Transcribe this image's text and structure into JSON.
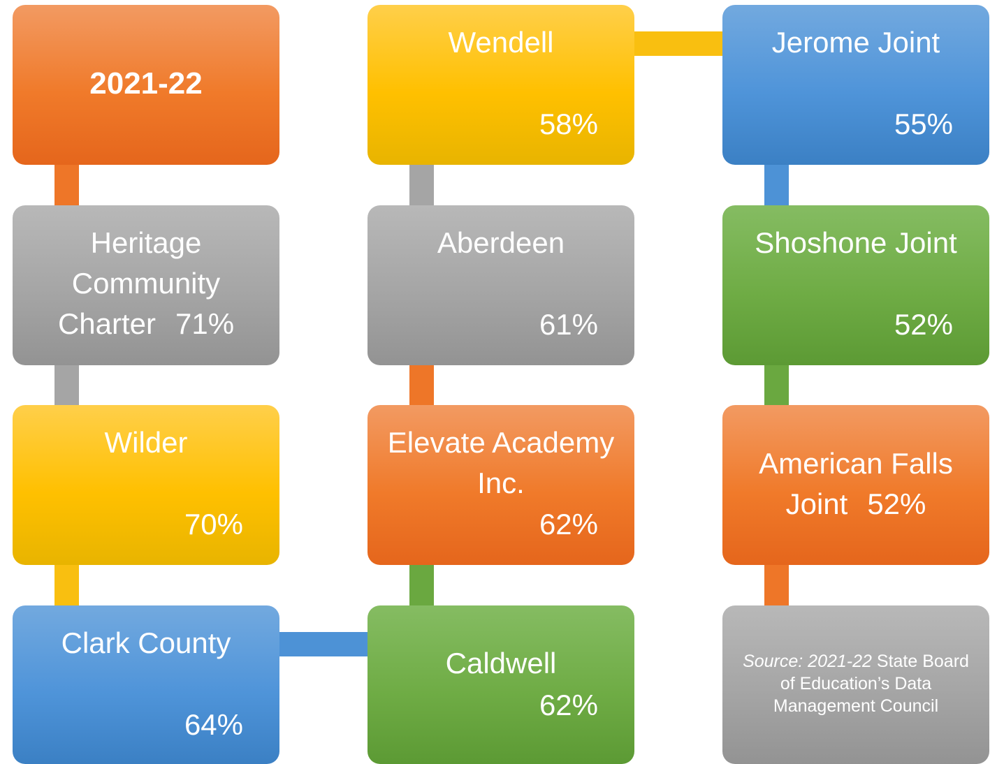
{
  "nodes": [
    {
      "name": "2021-22",
      "color": "orange"
    },
    {
      "name": "Heritage Community Charter",
      "value": "71%",
      "color": "gray"
    },
    {
      "name": "Wilder",
      "value": "70%",
      "color": "yellow"
    },
    {
      "name": "Clark County",
      "value": "64%",
      "color": "blue"
    },
    {
      "name": "Caldwell",
      "value": "62%",
      "color": "green"
    },
    {
      "name": "Elevate Academy Inc.",
      "value": "62%",
      "color": "orange"
    },
    {
      "name": "Aberdeen",
      "value": "61%",
      "color": "gray"
    },
    {
      "name": "Wendell",
      "value": "58%",
      "color": "yellow"
    },
    {
      "name": "Jerome Joint",
      "value": "55%",
      "color": "blue"
    },
    {
      "name": "Shoshone Joint",
      "value": "52%",
      "color": "green"
    },
    {
      "name": "American Falls Joint",
      "value": "52%",
      "color": "orange"
    }
  ],
  "source": {
    "italic": "Source: 2021-22",
    "text": "State Board of Education’s Data Management Council",
    "color": "gray"
  }
}
